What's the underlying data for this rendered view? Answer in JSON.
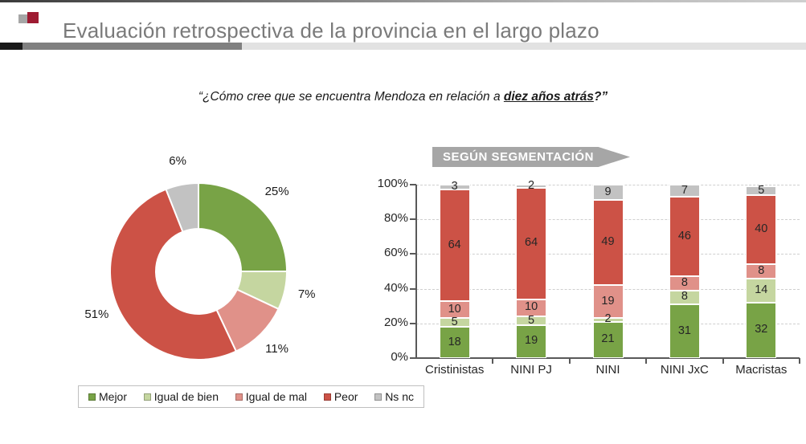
{
  "header": {
    "title": "Evaluación retrospectiva de la provincia en el largo plazo"
  },
  "question": {
    "prefix": "“¿Cómo cree que se encuentra Mendoza en relación a ",
    "highlight": "diez años atrás",
    "suffix": "?”"
  },
  "banner": {
    "label": "SEGÚN SEGMENTACIÓN"
  },
  "colors": {
    "mejor": "#78A346",
    "igual_de_bien": "#C5D6A0",
    "igual_de_mal": "#E09189",
    "peor": "#CC5246",
    "ns_nc": "#C2C2C2",
    "accent_crimson": "#9E1B32",
    "banner_gray": "#A6A6A6",
    "title_gray": "#7A7A7A"
  },
  "chart_data": [
    {
      "id": "overall-donut",
      "type": "pie",
      "subtype": "donut",
      "labels": [
        "Mejor",
        "Igual de bien",
        "Igual de mal",
        "Peor",
        "Ns nc"
      ],
      "values": [
        25,
        7,
        11,
        51,
        6
      ],
      "colors": [
        "#78A346",
        "#C5D6A0",
        "#E09189",
        "#CC5246",
        "#C2C2C2"
      ],
      "start_angle_deg": 0,
      "direction": "clockwise",
      "label_format": "percent",
      "title": ""
    },
    {
      "id": "segmentation-bars",
      "type": "bar",
      "stacked": true,
      "categories": [
        "Cristinistas",
        "NINI PJ",
        "NINI",
        "NINI JxC",
        "Macristas"
      ],
      "series": [
        {
          "name": "Mejor",
          "color": "#78A346",
          "values": [
            18,
            19,
            21,
            31,
            32
          ]
        },
        {
          "name": "Igual de bien",
          "color": "#C5D6A0",
          "values": [
            5,
            5,
            2,
            8,
            14
          ]
        },
        {
          "name": "Igual de mal",
          "color": "#E09189",
          "values": [
            10,
            10,
            19,
            8,
            8
          ]
        },
        {
          "name": "Peor",
          "color": "#CC5246",
          "values": [
            64,
            64,
            49,
            46,
            40
          ]
        },
        {
          "name": "Ns nc",
          "color": "#C2C2C2",
          "values": [
            3,
            2,
            9,
            7,
            5
          ]
        }
      ],
      "ylim": [
        0,
        100
      ],
      "ytick_labels": [
        "0%",
        "20%",
        "40%",
        "60%",
        "80%",
        "100%"
      ],
      "grid": "dashed-horizontal",
      "legend_position": "bottom-left"
    }
  ],
  "legend": {
    "items": [
      {
        "label": "Mejor",
        "color": "#78A346"
      },
      {
        "label": "Igual de bien",
        "color": "#C5D6A0"
      },
      {
        "label": "Igual de mal",
        "color": "#E09189"
      },
      {
        "label": "Peor",
        "color": "#CC5246"
      },
      {
        "label": "Ns nc",
        "color": "#C2C2C2"
      }
    ]
  }
}
